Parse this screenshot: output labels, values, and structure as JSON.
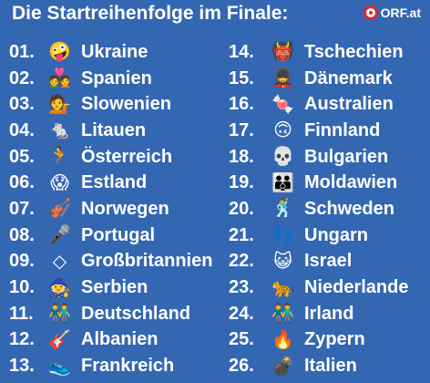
{
  "header": {
    "title": "Die Startreihenfolge im Finale:",
    "logo_text": "ORF.at"
  },
  "left_column": [
    {
      "number": "01.",
      "icon": "zany-face",
      "glyph": "🤪",
      "country": "Ukraine"
    },
    {
      "number": "02.",
      "icon": "couple-with-heart",
      "glyph": "💑",
      "country": "Spanien"
    },
    {
      "number": "03.",
      "icon": "woman-tipping-hand",
      "glyph": "💁",
      "country": "Slowenien"
    },
    {
      "number": "04.",
      "icon": "mouse",
      "glyph": "🐁",
      "country": "Litauen"
    },
    {
      "number": "05.",
      "icon": "person-running",
      "glyph": "🏃",
      "country": "Österreich"
    },
    {
      "number": "06.",
      "icon": "screaming-face",
      "glyph": "😱",
      "country": "Estland"
    },
    {
      "number": "07.",
      "icon": "violin",
      "glyph": "🎻",
      "country": "Norwegen"
    },
    {
      "number": "08.",
      "icon": "microphone",
      "glyph": "🎤",
      "country": "Portugal"
    },
    {
      "number": "09.",
      "icon": "diamond-outline",
      "glyph": "◇",
      "country": "Großbritannien"
    },
    {
      "number": "10.",
      "icon": "mage",
      "glyph": "🧙",
      "country": "Serbien"
    },
    {
      "number": "11.",
      "icon": "men-holding-hands",
      "glyph": "👬",
      "country": "Deutschland"
    },
    {
      "number": "12.",
      "icon": "guitar",
      "glyph": "🎸",
      "country": "Albanien"
    },
    {
      "number": "13.",
      "icon": "sneaker",
      "glyph": "👟",
      "country": "Frankreich"
    }
  ],
  "right_column": [
    {
      "number": "14.",
      "icon": "ogre-mask",
      "glyph": "👹",
      "country": "Tschechien"
    },
    {
      "number": "15.",
      "icon": "viking-guard",
      "glyph": "💂",
      "country": "Dänemark"
    },
    {
      "number": "16.",
      "icon": "candy",
      "glyph": "🍬",
      "country": "Australien"
    },
    {
      "number": "17.",
      "icon": "upside-down-face",
      "glyph": "🙃",
      "country": "Finnland"
    },
    {
      "number": "18.",
      "icon": "skull",
      "glyph": "💀",
      "country": "Bulgarien"
    },
    {
      "number": "19.",
      "icon": "family",
      "glyph": "👪",
      "country": "Moldawien"
    },
    {
      "number": "20.",
      "icon": "person-dancing",
      "glyph": "🕺",
      "country": "Schweden"
    },
    {
      "number": "21.",
      "icon": "footprints",
      "glyph": "👣",
      "country": "Ungarn"
    },
    {
      "number": "22.",
      "icon": "grinning-cat",
      "glyph": "😺",
      "country": "Israel"
    },
    {
      "number": "23.",
      "icon": "leopard",
      "glyph": "🐆",
      "country": "Niederlande"
    },
    {
      "number": "24.",
      "icon": "men-holding-hands",
      "glyph": "👬",
      "country": "Irland"
    },
    {
      "number": "25.",
      "icon": "fire",
      "glyph": "🔥",
      "country": "Zypern"
    },
    {
      "number": "26.",
      "icon": "bomb",
      "glyph": "💣",
      "country": "Italien"
    }
  ]
}
